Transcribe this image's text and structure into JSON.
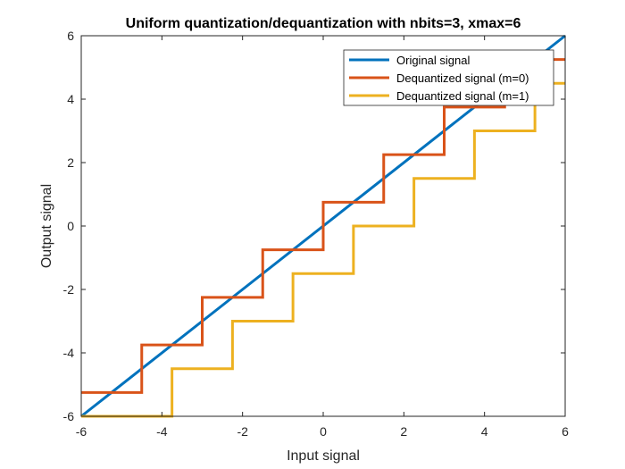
{
  "chart_data": {
    "type": "line",
    "title": "Uniform quantization/dequantization with nbits=3, xmax=6",
    "xlabel": "Input signal",
    "ylabel": "Output signal",
    "xlim": [
      -6,
      6
    ],
    "ylim": [
      -6,
      6
    ],
    "xticks": [
      "-6",
      "-4",
      "-2",
      "0",
      "2",
      "4",
      "6"
    ],
    "yticks": [
      "-6",
      "-4",
      "-2",
      "0",
      "2",
      "4",
      "6"
    ],
    "grid": false,
    "legend_position": "top-right",
    "series": [
      {
        "name": "Original signal",
        "color": "#0072BD",
        "step": false,
        "x": [
          -6,
          6
        ],
        "y": [
          -6,
          6
        ]
      },
      {
        "name": "Dequantized signal (m=0)",
        "color": "#D95319",
        "step": true,
        "x": [
          -6,
          -4.5,
          -3,
          -1.5,
          0,
          1.5,
          3,
          4.5,
          6
        ],
        "y": [
          -5.25,
          -3.75,
          -2.25,
          -0.75,
          0.75,
          2.25,
          3.75,
          5.25,
          5.25
        ]
      },
      {
        "name": "Dequantized signal (m=1)",
        "color": "#EDB120",
        "step": true,
        "x": [
          -6,
          -3.75,
          -2.25,
          -0.75,
          0.75,
          2.25,
          3.75,
          5.25,
          6
        ],
        "y": [
          -6,
          -4.5,
          -3,
          -1.5,
          0,
          1.5,
          3,
          4.5,
          4.5
        ]
      }
    ]
  }
}
